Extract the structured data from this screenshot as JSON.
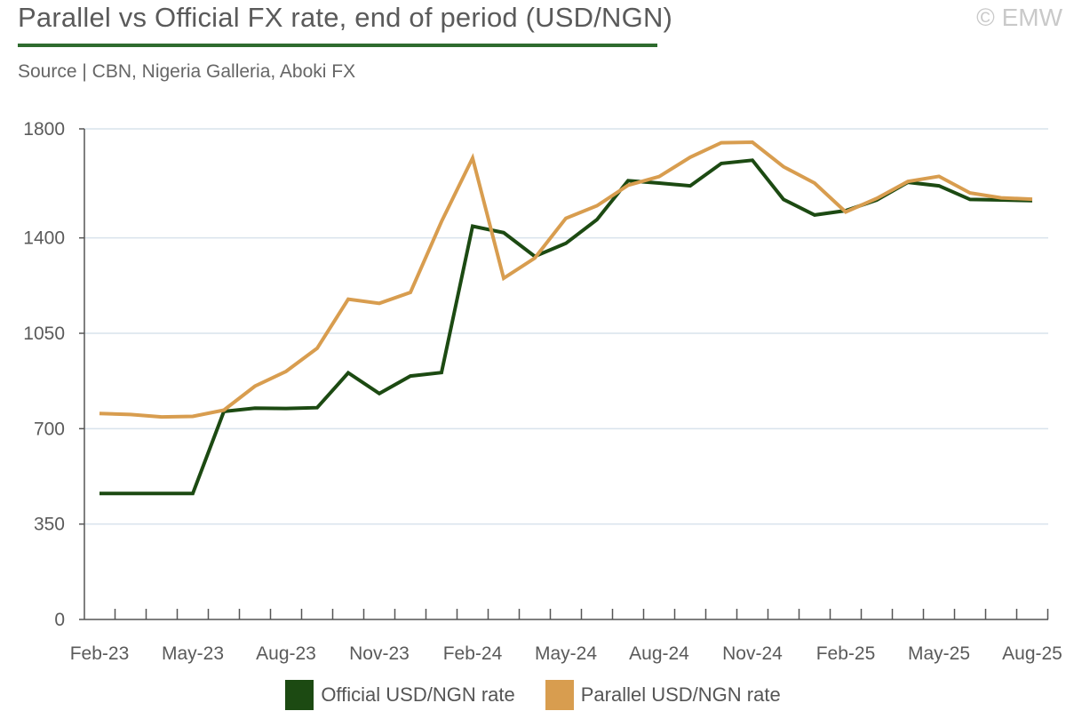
{
  "header": {
    "title": "Parallel vs Official FX rate, end of period (USD/NGN)",
    "subtitle": "Source | CBN, Nigeria Galleria, Aboki FX",
    "copyright": "© EMW"
  },
  "colors": {
    "official": "#1c4a12",
    "parallel": "#d89d4f",
    "accent_rule": "#2e6b2e",
    "grid": "#d9e3ec",
    "axis": "#555555"
  },
  "chart_data": {
    "type": "line",
    "title": "Parallel vs Official FX rate, end of period (USD/NGN)",
    "xlabel": "",
    "ylabel": "",
    "ylim": [
      0,
      1800
    ],
    "yticks": [
      0,
      350,
      700,
      1050,
      1400,
      1800
    ],
    "grid": true,
    "legend_position": "bottom",
    "x": [
      "Feb-23",
      "Mar-23",
      "Apr-23",
      "May-23",
      "Jun-23",
      "Jul-23",
      "Aug-23",
      "Sep-23",
      "Oct-23",
      "Nov-23",
      "Dec-23",
      "Jan-24",
      "Feb-24",
      "Mar-24",
      "Apr-24",
      "May-24",
      "Jun-24",
      "Jul-24",
      "Aug-24",
      "Sep-24",
      "Oct-24",
      "Nov-24",
      "Dec-24",
      "Jan-25",
      "Feb-25",
      "Mar-25",
      "Apr-25",
      "May-25",
      "Jun-25",
      "Jul-25",
      "Aug-25"
    ],
    "x_tick_labels": [
      "Feb-23",
      "May-23",
      "Aug-23",
      "Nov-23",
      "Feb-24",
      "May-24",
      "Aug-24",
      "Nov-24",
      "Feb-25",
      "May-25",
      "Aug-25"
    ],
    "series": [
      {
        "name": "Official USD/NGN rate",
        "values": [
          462,
          462,
          462,
          462,
          763,
          775,
          774,
          777,
          905,
          829,
          893,
          906,
          1443,
          1419,
          1332,
          1380,
          1467,
          1610,
          1601,
          1591,
          1673,
          1685,
          1541,
          1484,
          1500,
          1539,
          1604,
          1591,
          1541,
          1539,
          1537
        ]
      },
      {
        "name": "Parallel USD/NGN rate",
        "values": [
          756,
          752,
          743,
          745,
          768,
          856,
          910,
          995,
          1175,
          1160,
          1200,
          1460,
          1693,
          1252,
          1326,
          1472,
          1518,
          1593,
          1625,
          1696,
          1749,
          1751,
          1661,
          1601,
          1495,
          1545,
          1607,
          1626,
          1565,
          1547,
          1542
        ]
      }
    ]
  },
  "legend": {
    "official_label": "Official USD/NGN rate",
    "parallel_label": "Parallel USD/NGN rate"
  }
}
